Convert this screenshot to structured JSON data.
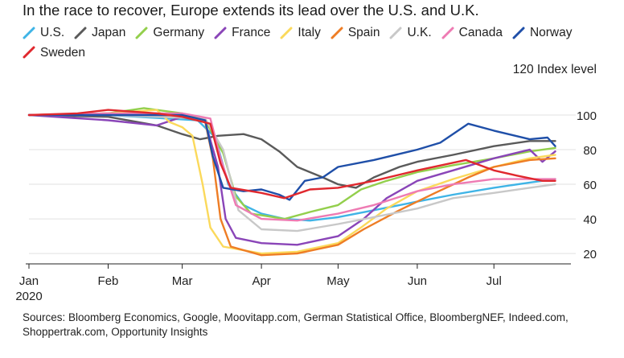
{
  "title": "In the race to recover, Europe extends its lead over the U.S. and U.K.",
  "unit_label": "120 Index level",
  "source": "Sources: Bloomberg Economics, Google, Moovitapp.com, German Statistical Office, BloombergNEF, Indeed.com, Shoppertrak.com, Opportunity Insights",
  "legend": [
    {
      "name": "U.S.",
      "color": "#3fb4e6"
    },
    {
      "name": "Japan",
      "color": "#5a5a5a"
    },
    {
      "name": "Germany",
      "color": "#93cf4c"
    },
    {
      "name": "France",
      "color": "#8a45b8"
    },
    {
      "name": "Italy",
      "color": "#fbd95b"
    },
    {
      "name": "Spain",
      "color": "#ee7d25"
    },
    {
      "name": "U.K.",
      "color": "#c8c8c8"
    },
    {
      "name": "Canada",
      "color": "#ee7bb3"
    },
    {
      "name": "Norway",
      "color": "#1f4fa8"
    },
    {
      "name": "Sweden",
      "color": "#e0282e"
    }
  ],
  "chart_data": {
    "type": "line",
    "title": "In the race to recover, Europe extends its lead over the U.S. and U.K.",
    "ylabel": "Index level",
    "ylim": [
      14,
      120
    ],
    "yticks": [
      20,
      40,
      60,
      80,
      100
    ],
    "xlim": [
      "2020-01-01",
      "2020-07-28"
    ],
    "xticks": [
      {
        "date": "2020-01-01",
        "label": "Jan",
        "sublabel": "2020"
      },
      {
        "date": "2020-02-01",
        "label": "Feb",
        "sublabel": ""
      },
      {
        "date": "2020-03-01",
        "label": "Mar",
        "sublabel": ""
      },
      {
        "date": "2020-04-01",
        "label": "Apr",
        "sublabel": ""
      },
      {
        "date": "2020-05-01",
        "label": "May",
        "sublabel": ""
      },
      {
        "date": "2020-06-01",
        "label": "Jun",
        "sublabel": ""
      },
      {
        "date": "2020-07-01",
        "label": "Jul",
        "sublabel": ""
      }
    ],
    "grid": true,
    "series": [
      {
        "name": "U.S.",
        "color": "#3fb4e6",
        "points": [
          [
            "2020-01-01",
            100
          ],
          [
            "2020-02-01",
            100
          ],
          [
            "2020-03-07",
            97
          ],
          [
            "2020-03-14",
            87
          ],
          [
            "2020-03-19",
            60
          ],
          [
            "2020-03-25",
            48
          ],
          [
            "2020-04-01",
            43
          ],
          [
            "2020-04-10",
            40
          ],
          [
            "2020-04-20",
            39
          ],
          [
            "2020-05-01",
            41
          ],
          [
            "2020-05-15",
            45
          ],
          [
            "2020-06-01",
            50
          ],
          [
            "2020-06-15",
            54
          ],
          [
            "2020-07-01",
            58
          ],
          [
            "2020-07-15",
            61
          ],
          [
            "2020-07-25",
            63
          ]
        ]
      },
      {
        "name": "Japan",
        "color": "#5a5a5a",
        "points": [
          [
            "2020-01-01",
            100
          ],
          [
            "2020-02-01",
            99
          ],
          [
            "2020-02-20",
            94
          ],
          [
            "2020-03-01",
            89
          ],
          [
            "2020-03-08",
            86
          ],
          [
            "2020-03-15",
            88
          ],
          [
            "2020-03-25",
            89
          ],
          [
            "2020-04-01",
            86
          ],
          [
            "2020-04-08",
            79
          ],
          [
            "2020-04-15",
            70
          ],
          [
            "2020-04-25",
            64
          ],
          [
            "2020-05-01",
            60
          ],
          [
            "2020-05-08",
            58
          ],
          [
            "2020-05-15",
            64
          ],
          [
            "2020-05-25",
            70
          ],
          [
            "2020-06-01",
            73
          ],
          [
            "2020-06-15",
            77
          ],
          [
            "2020-07-01",
            82
          ],
          [
            "2020-07-15",
            85
          ],
          [
            "2020-07-25",
            85
          ]
        ]
      },
      {
        "name": "Germany",
        "color": "#93cf4c",
        "points": [
          [
            "2020-01-01",
            100
          ],
          [
            "2020-02-01",
            101
          ],
          [
            "2020-02-15",
            104
          ],
          [
            "2020-03-01",
            101
          ],
          [
            "2020-03-10",
            97
          ],
          [
            "2020-03-17",
            78
          ],
          [
            "2020-03-22",
            53
          ],
          [
            "2020-03-28",
            43
          ],
          [
            "2020-04-10",
            40
          ],
          [
            "2020-04-20",
            44
          ],
          [
            "2020-05-01",
            48
          ],
          [
            "2020-05-10",
            57
          ],
          [
            "2020-05-20",
            62
          ],
          [
            "2020-06-01",
            67
          ],
          [
            "2020-06-15",
            71
          ],
          [
            "2020-07-01",
            75
          ],
          [
            "2020-07-15",
            79
          ],
          [
            "2020-07-25",
            81
          ]
        ]
      },
      {
        "name": "France",
        "color": "#8a45b8",
        "points": [
          [
            "2020-01-01",
            100
          ],
          [
            "2020-02-01",
            97
          ],
          [
            "2020-02-20",
            94
          ],
          [
            "2020-03-01",
            99
          ],
          [
            "2020-03-10",
            96
          ],
          [
            "2020-03-15",
            70
          ],
          [
            "2020-03-18",
            40
          ],
          [
            "2020-03-22",
            29
          ],
          [
            "2020-04-01",
            26
          ],
          [
            "2020-04-15",
            25
          ],
          [
            "2020-05-01",
            30
          ],
          [
            "2020-05-11",
            40
          ],
          [
            "2020-05-20",
            52
          ],
          [
            "2020-06-01",
            62
          ],
          [
            "2020-06-15",
            68
          ],
          [
            "2020-07-01",
            75
          ],
          [
            "2020-07-15",
            80
          ],
          [
            "2020-07-20",
            73
          ],
          [
            "2020-07-25",
            79
          ]
        ]
      },
      {
        "name": "Italy",
        "color": "#fbd95b",
        "points": [
          [
            "2020-01-01",
            100
          ],
          [
            "2020-02-01",
            101
          ],
          [
            "2020-02-20",
            103
          ],
          [
            "2020-02-25",
            96
          ],
          [
            "2020-03-01",
            93
          ],
          [
            "2020-03-05",
            88
          ],
          [
            "2020-03-09",
            60
          ],
          [
            "2020-03-12",
            35
          ],
          [
            "2020-03-17",
            24
          ],
          [
            "2020-04-01",
            20
          ],
          [
            "2020-04-15",
            21
          ],
          [
            "2020-05-01",
            26
          ],
          [
            "2020-05-10",
            35
          ],
          [
            "2020-05-20",
            46
          ],
          [
            "2020-06-01",
            56
          ],
          [
            "2020-06-15",
            63
          ],
          [
            "2020-07-01",
            70
          ],
          [
            "2020-07-15",
            75
          ],
          [
            "2020-07-25",
            77
          ]
        ]
      },
      {
        "name": "Spain",
        "color": "#ee7d25",
        "points": [
          [
            "2020-01-01",
            100
          ],
          [
            "2020-02-01",
            101
          ],
          [
            "2020-03-01",
            99
          ],
          [
            "2020-03-10",
            96
          ],
          [
            "2020-03-13",
            75
          ],
          [
            "2020-03-16",
            40
          ],
          [
            "2020-03-20",
            24
          ],
          [
            "2020-04-01",
            19
          ],
          [
            "2020-04-15",
            20
          ],
          [
            "2020-05-01",
            25
          ],
          [
            "2020-05-11",
            34
          ],
          [
            "2020-05-25",
            45
          ],
          [
            "2020-06-08",
            55
          ],
          [
            "2020-06-21",
            64
          ],
          [
            "2020-07-01",
            70
          ],
          [
            "2020-07-15",
            74
          ],
          [
            "2020-07-25",
            75
          ]
        ]
      },
      {
        "name": "U.K.",
        "color": "#c8c8c8",
        "points": [
          [
            "2020-01-01",
            100
          ],
          [
            "2020-02-01",
            100
          ],
          [
            "2020-03-10",
            98
          ],
          [
            "2020-03-17",
            80
          ],
          [
            "2020-03-23",
            45
          ],
          [
            "2020-04-01",
            34
          ],
          [
            "2020-04-15",
            33
          ],
          [
            "2020-05-01",
            37
          ],
          [
            "2020-05-15",
            41
          ],
          [
            "2020-06-01",
            46
          ],
          [
            "2020-06-15",
            52
          ],
          [
            "2020-07-01",
            55
          ],
          [
            "2020-07-15",
            58
          ],
          [
            "2020-07-25",
            60
          ]
        ]
      },
      {
        "name": "Canada",
        "color": "#ee7bb3",
        "points": [
          [
            "2020-01-01",
            100
          ],
          [
            "2020-02-01",
            101
          ],
          [
            "2020-03-01",
            101
          ],
          [
            "2020-03-12",
            98
          ],
          [
            "2020-03-16",
            75
          ],
          [
            "2020-03-22",
            48
          ],
          [
            "2020-04-01",
            40
          ],
          [
            "2020-04-15",
            39
          ],
          [
            "2020-05-01",
            43
          ],
          [
            "2020-05-15",
            48
          ],
          [
            "2020-06-01",
            56
          ],
          [
            "2020-06-15",
            60
          ],
          [
            "2020-07-01",
            63
          ],
          [
            "2020-07-15",
            63
          ],
          [
            "2020-07-25",
            63
          ]
        ]
      },
      {
        "name": "Norway",
        "color": "#1f4fa8",
        "points": [
          [
            "2020-01-01",
            100
          ],
          [
            "2020-02-01",
            100
          ],
          [
            "2020-03-01",
            100
          ],
          [
            "2020-03-10",
            97
          ],
          [
            "2020-03-13",
            76
          ],
          [
            "2020-03-17",
            58
          ],
          [
            "2020-03-25",
            56
          ],
          [
            "2020-04-01",
            57
          ],
          [
            "2020-04-08",
            54
          ],
          [
            "2020-04-12",
            51
          ],
          [
            "2020-04-18",
            62
          ],
          [
            "2020-04-25",
            64
          ],
          [
            "2020-05-01",
            70
          ],
          [
            "2020-05-15",
            74
          ],
          [
            "2020-06-01",
            80
          ],
          [
            "2020-06-10",
            84
          ],
          [
            "2020-06-21",
            95
          ],
          [
            "2020-07-01",
            91
          ],
          [
            "2020-07-15",
            86
          ],
          [
            "2020-07-22",
            87
          ],
          [
            "2020-07-25",
            82
          ]
        ]
      },
      {
        "name": "Sweden",
        "color": "#e0282e",
        "points": [
          [
            "2020-01-01",
            100
          ],
          [
            "2020-01-20",
            101
          ],
          [
            "2020-02-01",
            103
          ],
          [
            "2020-02-20",
            101
          ],
          [
            "2020-03-01",
            99
          ],
          [
            "2020-03-12",
            95
          ],
          [
            "2020-03-16",
            72
          ],
          [
            "2020-03-20",
            58
          ],
          [
            "2020-04-01",
            55
          ],
          [
            "2020-04-10",
            52
          ],
          [
            "2020-04-20",
            57
          ],
          [
            "2020-05-01",
            58
          ],
          [
            "2020-05-15",
            62
          ],
          [
            "2020-06-01",
            68
          ],
          [
            "2020-06-20",
            74
          ],
          [
            "2020-07-01",
            68
          ],
          [
            "2020-07-10",
            65
          ],
          [
            "2020-07-20",
            62
          ],
          [
            "2020-07-25",
            62
          ]
        ]
      }
    ]
  }
}
